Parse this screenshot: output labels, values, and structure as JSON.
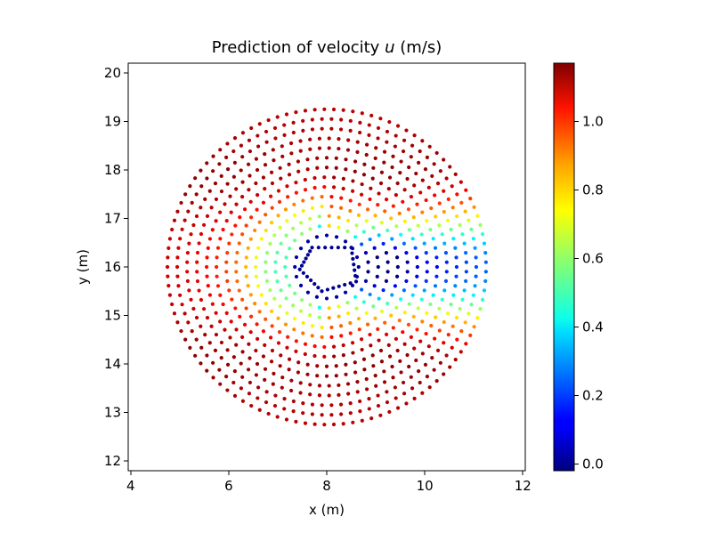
{
  "chart_data": {
    "type": "scatter",
    "title_prefix": "Prediction of velocity ",
    "title_var": "u",
    "title_suffix": " (m/s)",
    "xlabel": "x (m)",
    "ylabel": "y (m)",
    "xlim": [
      3.95,
      12.05
    ],
    "ylim": [
      11.8,
      20.2
    ],
    "xticks": [
      "4",
      "6",
      "8",
      "10",
      "12"
    ],
    "yticks": [
      "12",
      "13",
      "14",
      "15",
      "16",
      "17",
      "18",
      "19",
      "20"
    ],
    "colorbar": {
      "colormap": "jet",
      "vmin": -0.02,
      "vmax": 1.17,
      "ticks": [
        "0.0",
        "0.2",
        "0.4",
        "0.6",
        "0.8",
        "1.0"
      ]
    },
    "field": {
      "description_of_values": "Predicted streamwise velocity u sampled on a radial point cloud around a pentagonal obstacle",
      "center": [
        8.0,
        16.0
      ],
      "obstacle_vertices": [
        [
          7.7,
          16.4
        ],
        [
          8.5,
          16.4
        ],
        [
          8.6,
          15.7
        ],
        [
          7.9,
          15.5
        ],
        [
          7.45,
          15.95
        ]
      ],
      "inner_radius": 0.65,
      "outer_radius": 3.25,
      "rings": 14,
      "freestream_u": 1.1
    }
  }
}
